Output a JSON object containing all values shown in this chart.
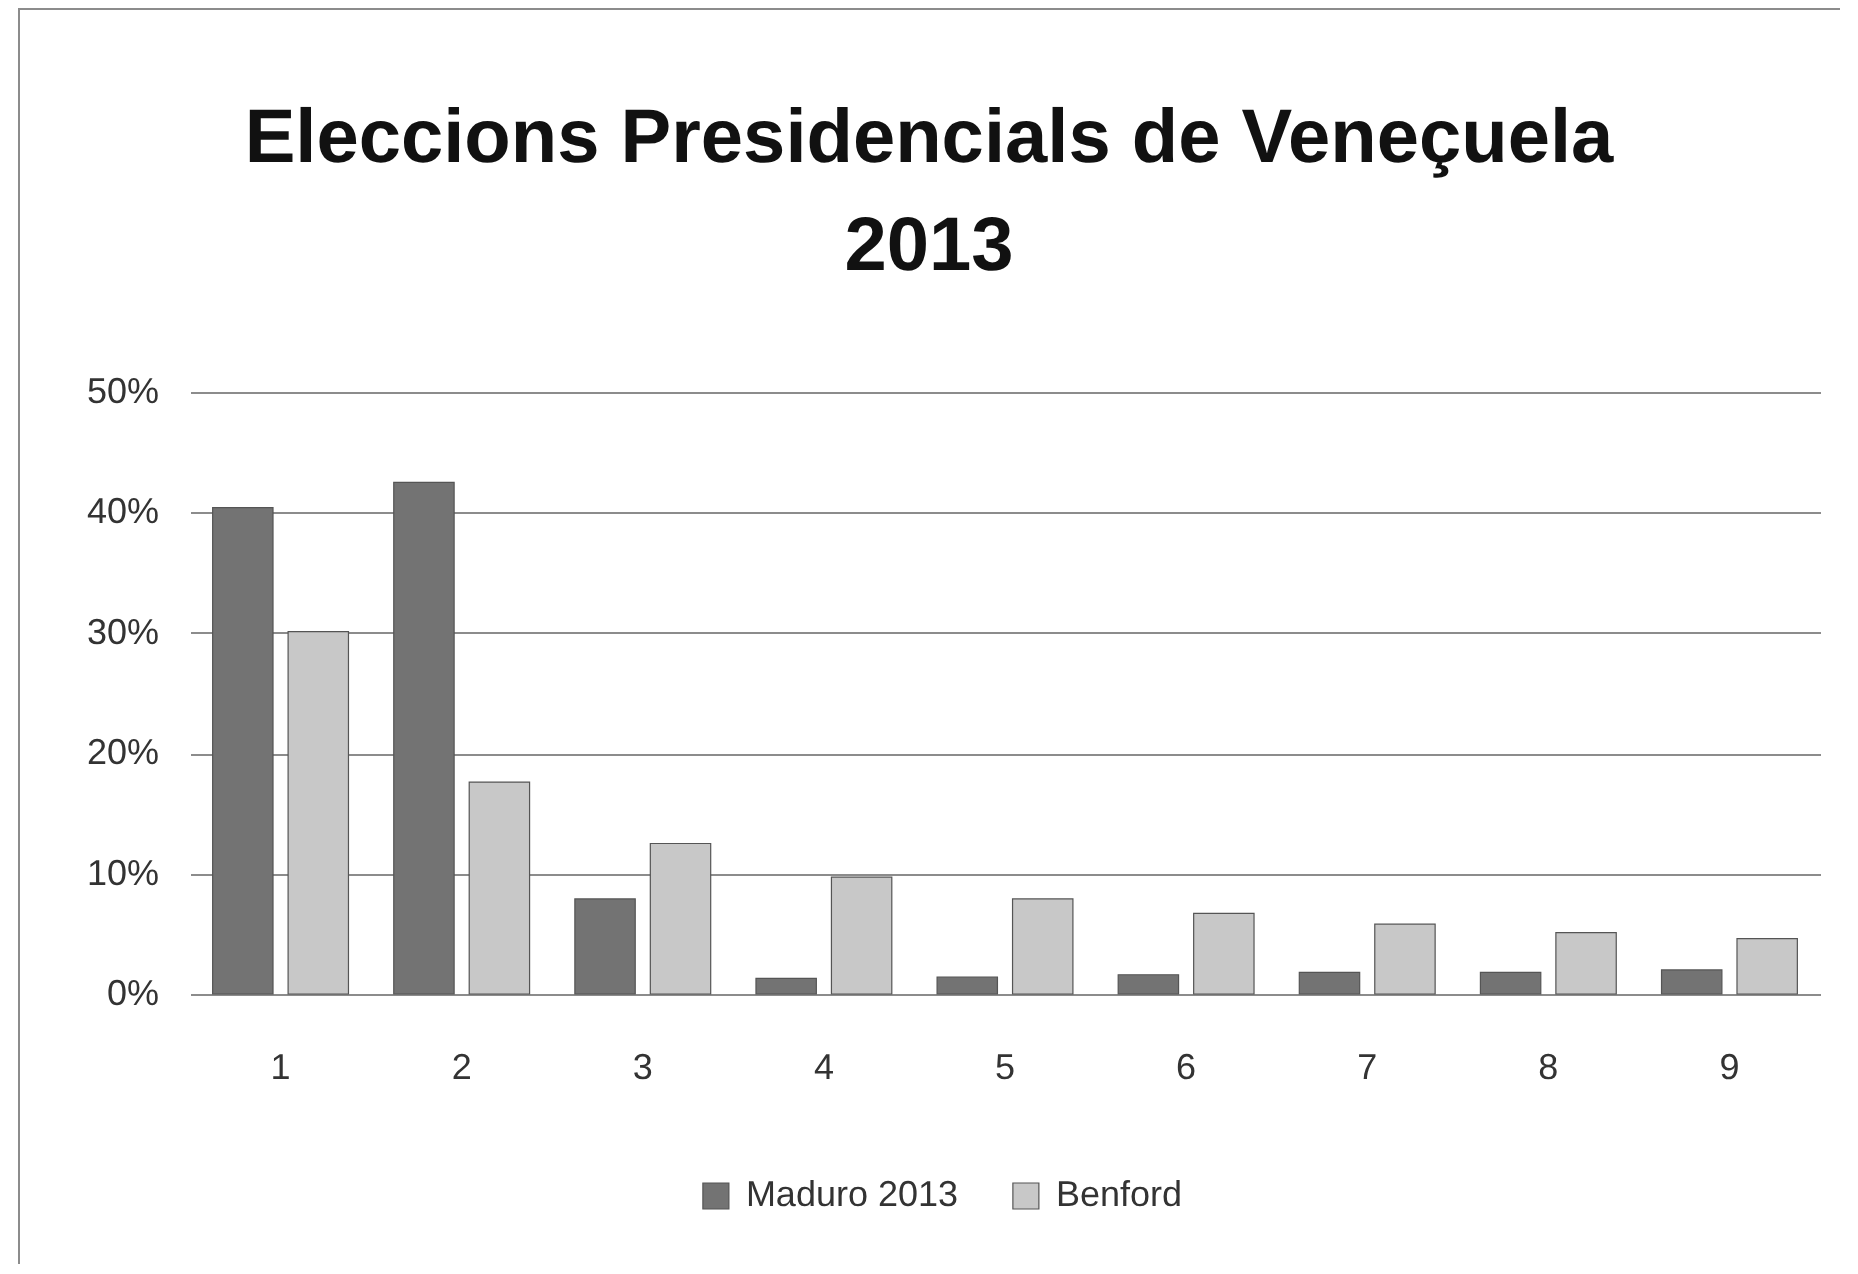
{
  "chart_data": {
    "type": "bar",
    "title": "Eleccions Presidencials de Veneçuela 2013",
    "categories": [
      "1",
      "2",
      "3",
      "4",
      "5",
      "6",
      "7",
      "8",
      "9"
    ],
    "series": [
      {
        "name": "Maduro 2013",
        "color": "#737373",
        "values": [
          40.4,
          42.5,
          7.9,
          1.3,
          1.4,
          1.6,
          1.8,
          1.8,
          2.0
        ]
      },
      {
        "name": "Benford",
        "color": "#c8c8c8",
        "values": [
          30.1,
          17.6,
          12.5,
          9.7,
          7.9,
          6.7,
          5.8,
          5.1,
          4.6
        ]
      }
    ],
    "ylim": [
      0,
      50
    ],
    "yticks": [
      {
        "value": 0,
        "label": "0%"
      },
      {
        "value": 10,
        "label": "10%"
      },
      {
        "value": 20,
        "label": "20%"
      },
      {
        "value": 30,
        "label": "30%"
      },
      {
        "value": 40,
        "label": "40%"
      },
      {
        "value": 50,
        "label": "50%"
      }
    ],
    "grid": "y",
    "legend": "bottom"
  }
}
